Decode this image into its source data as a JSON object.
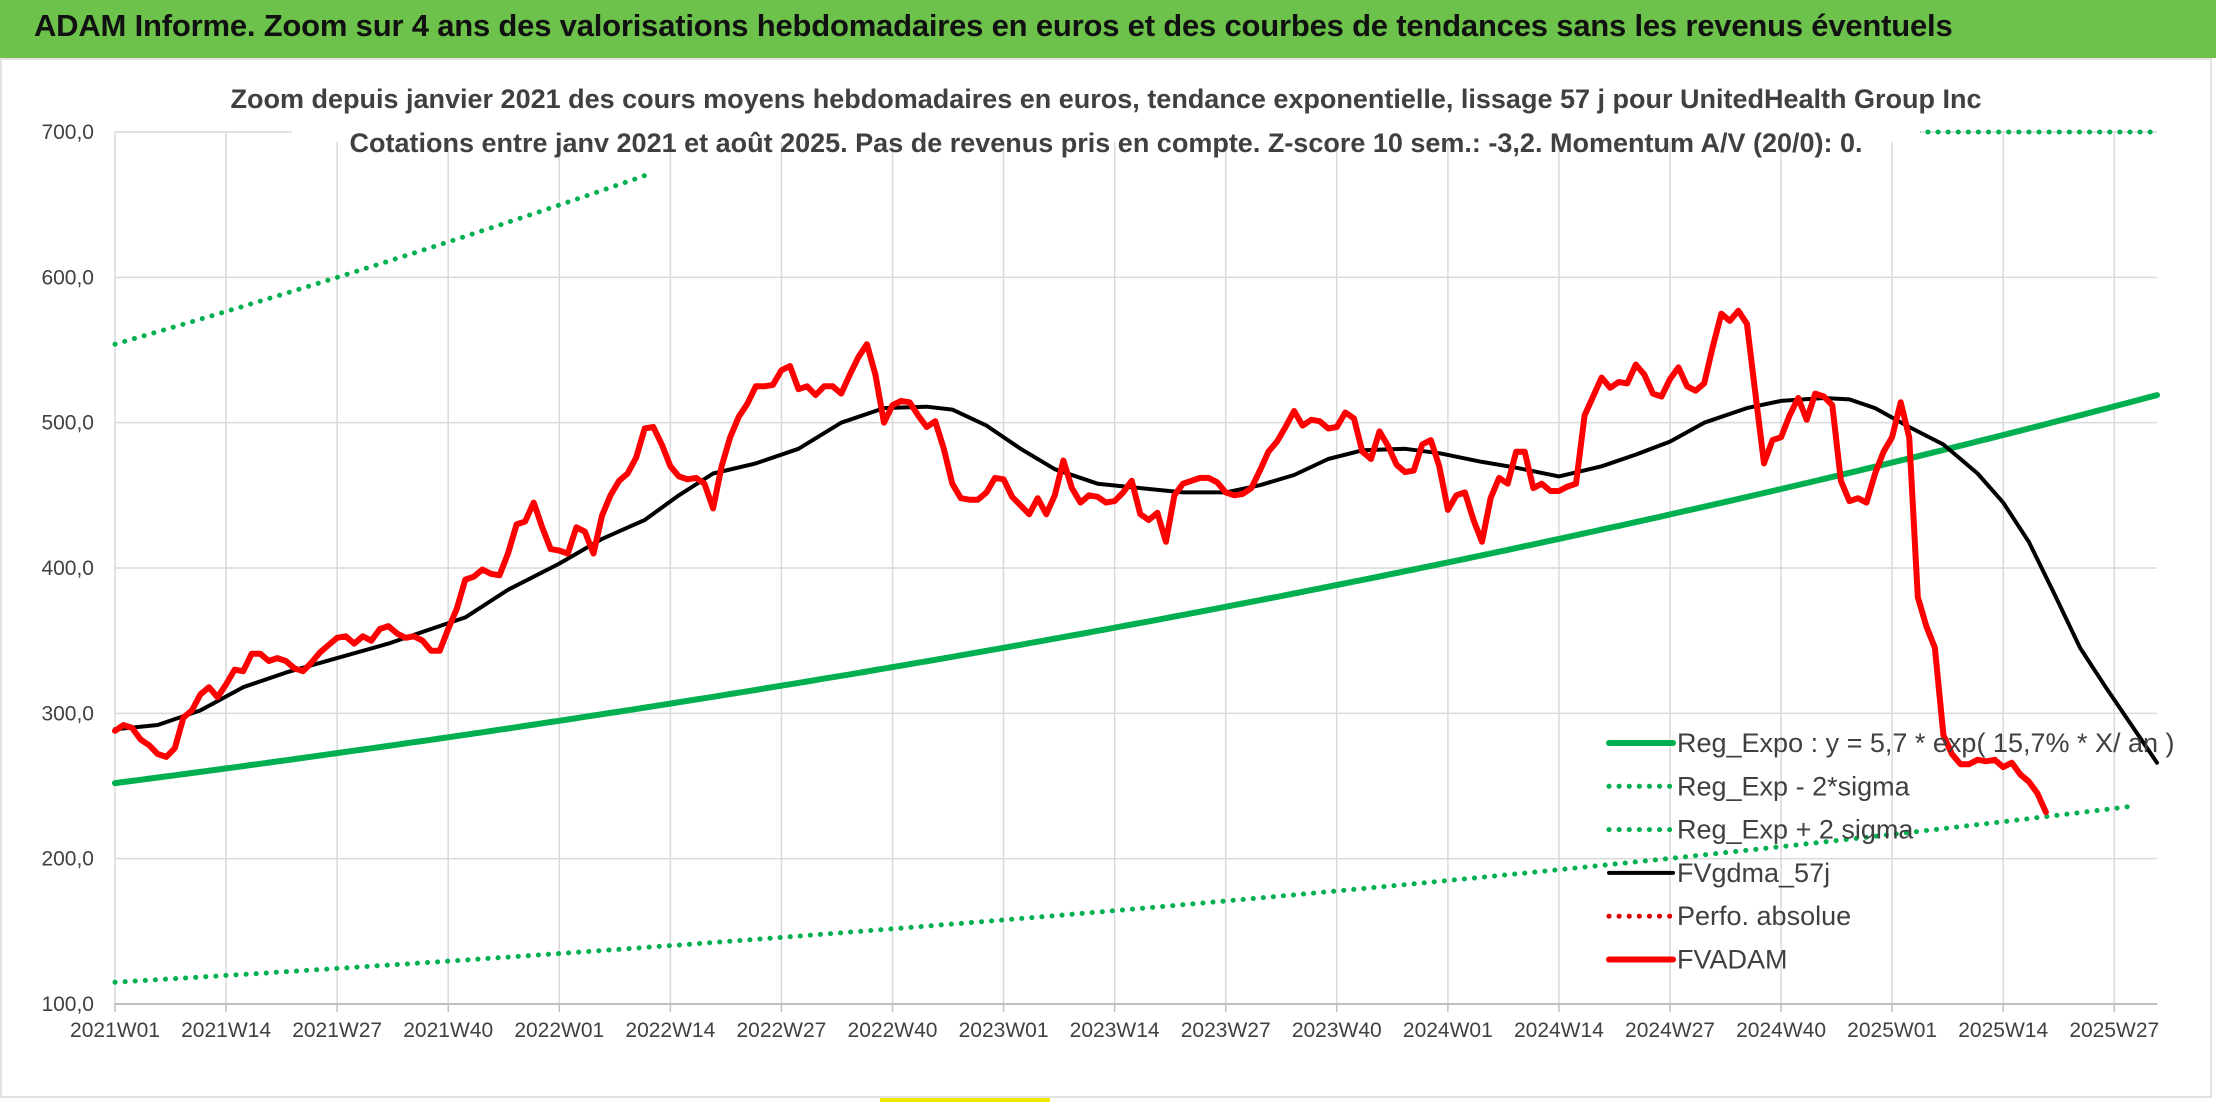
{
  "header": {
    "title": "ADAM Informe. Zoom sur 4 ans des valorisations hebdomadaires en euros et des courbes de tendances sans les revenus éventuels"
  },
  "colors": {
    "header_bg": "#6cc24a",
    "trend_green": "#00b050",
    "price_red": "#ff0000",
    "mma_black": "#000000",
    "perf_red": "#e00000",
    "grid": "#d9d9d9"
  },
  "chart_data": {
    "type": "line",
    "title": "Zoom depuis janvier 2021 des cours moyens hebdomadaires en euros, tendance exponentielle, lissage 57 j pour UnitedHealth Group Inc",
    "subtitle": "Cotations entre janv 2021 et août 2025. Pas de revenus pris en compte. Z-score 10 sem.: -3,2. Momentum A/V (20/0): 0.",
    "ylim": [
      100,
      700
    ],
    "y_ticks": [
      "700,0",
      "600,0",
      "500,0",
      "400,0",
      "300,0",
      "200,0",
      "100,0"
    ],
    "y_tick_values": [
      700,
      600,
      500,
      400,
      300,
      200,
      100
    ],
    "x_tick_labels": [
      "2021W01",
      "2021W14",
      "2021W27",
      "2021W40",
      "2022W01",
      "2022W14",
      "2022W27",
      "2022W40",
      "2023W01",
      "2023W14",
      "2023W27",
      "2023W40",
      "2024W01",
      "2024W14",
      "2024W27",
      "2024W40",
      "2025W01",
      "2025W14",
      "2025W27"
    ],
    "x_tick_weeks": [
      0,
      13,
      26,
      39,
      52,
      65,
      78,
      91,
      104,
      117,
      130,
      143,
      156,
      169,
      182,
      195,
      208,
      221,
      234
    ],
    "x_range_weeks": [
      0,
      239
    ],
    "grid": true,
    "legend_position": "bottom-right",
    "series": [
      {
        "name": "Reg_Expo : y = 5,7 * exp( 15,7% *  X/ an )",
        "style": "solid-thick",
        "color": "#00b050",
        "kind": "exponential",
        "points": [
          [
            0,
            252
          ],
          [
            239,
            519
          ]
        ]
      },
      {
        "name": "Reg_Exp - 2*sigma",
        "style": "dotted",
        "color": "#00b050",
        "kind": "exponential",
        "points": [
          [
            0,
            115
          ],
          [
            236,
            236
          ]
        ]
      },
      {
        "name": "Reg_Exp + 2 sigma",
        "style": "dotted",
        "color": "#00b050",
        "kind": "exponential",
        "points": [
          [
            0,
            554
          ],
          [
            62,
            670
          ]
        ],
        "flat_segment": [
          [
            211,
            700
          ],
          [
            239,
            700
          ]
        ]
      },
      {
        "name": "FVgdma_57j",
        "style": "solid",
        "color": "#000000",
        "points": [
          [
            0,
            289
          ],
          [
            5,
            292
          ],
          [
            10,
            302
          ],
          [
            15,
            318
          ],
          [
            20,
            328
          ],
          [
            26,
            338
          ],
          [
            32,
            348
          ],
          [
            37,
            358
          ],
          [
            41,
            366
          ],
          [
            46,
            385
          ],
          [
            52,
            403
          ],
          [
            57,
            420
          ],
          [
            62,
            433
          ],
          [
            66,
            450
          ],
          [
            70,
            465
          ],
          [
            75,
            472
          ],
          [
            80,
            482
          ],
          [
            85,
            500
          ],
          [
            90,
            510
          ],
          [
            95,
            511
          ],
          [
            98,
            509
          ],
          [
            102,
            498
          ],
          [
            106,
            482
          ],
          [
            110,
            468
          ],
          [
            115,
            458
          ],
          [
            120,
            455
          ],
          [
            125,
            452
          ],
          [
            130,
            452
          ],
          [
            134,
            457
          ],
          [
            138,
            464
          ],
          [
            142,
            475
          ],
          [
            146,
            481
          ],
          [
            151,
            482
          ],
          [
            155,
            479
          ],
          [
            160,
            473
          ],
          [
            164,
            469
          ],
          [
            169,
            463
          ],
          [
            174,
            470
          ],
          [
            178,
            478
          ],
          [
            182,
            487
          ],
          [
            186,
            500
          ],
          [
            191,
            510
          ],
          [
            195,
            515
          ],
          [
            200,
            517
          ],
          [
            203,
            516
          ],
          [
            206,
            510
          ],
          [
            210,
            497
          ],
          [
            214,
            485
          ],
          [
            218,
            465
          ],
          [
            221,
            445
          ],
          [
            224,
            418
          ],
          [
            227,
            382
          ],
          [
            230,
            345
          ],
          [
            233,
            318
          ],
          [
            236,
            292
          ],
          [
            239,
            266
          ]
        ]
      },
      {
        "name": "Perfo. absolue",
        "style": "dotted",
        "color": "#e00000",
        "points": []
      },
      {
        "name": "FVADAM",
        "style": "solid-thick",
        "color": "#ff0000",
        "points": [
          [
            0,
            288
          ],
          [
            1,
            292
          ],
          [
            2,
            290
          ],
          [
            3,
            282
          ],
          [
            4,
            278
          ],
          [
            5,
            272
          ],
          [
            6,
            270
          ],
          [
            7,
            276
          ],
          [
            8,
            297
          ],
          [
            9,
            302
          ],
          [
            10,
            313
          ],
          [
            11,
            318
          ],
          [
            12,
            311
          ],
          [
            13,
            320
          ],
          [
            14,
            330
          ],
          [
            15,
            329
          ],
          [
            16,
            341
          ],
          [
            17,
            341
          ],
          [
            18,
            336
          ],
          [
            19,
            338
          ],
          [
            20,
            336
          ],
          [
            21,
            331
          ],
          [
            22,
            329
          ],
          [
            23,
            335
          ],
          [
            24,
            342
          ],
          [
            25,
            347
          ],
          [
            26,
            352
          ],
          [
            27,
            353
          ],
          [
            28,
            348
          ],
          [
            29,
            353
          ],
          [
            30,
            350
          ],
          [
            31,
            358
          ],
          [
            32,
            360
          ],
          [
            33,
            355
          ],
          [
            34,
            352
          ],
          [
            35,
            353
          ],
          [
            36,
            350
          ],
          [
            37,
            343
          ],
          [
            38,
            343
          ],
          [
            39,
            358
          ],
          [
            40,
            372
          ],
          [
            41,
            392
          ],
          [
            42,
            394
          ],
          [
            43,
            399
          ],
          [
            44,
            396
          ],
          [
            45,
            395
          ],
          [
            46,
            410
          ],
          [
            47,
            430
          ],
          [
            48,
            432
          ],
          [
            49,
            445
          ],
          [
            50,
            428
          ],
          [
            51,
            413
          ],
          [
            52,
            412
          ],
          [
            53,
            410
          ],
          [
            54,
            428
          ],
          [
            55,
            425
          ],
          [
            56,
            410
          ],
          [
            57,
            436
          ],
          [
            58,
            450
          ],
          [
            59,
            460
          ],
          [
            60,
            465
          ],
          [
            61,
            476
          ],
          [
            62,
            496
          ],
          [
            63,
            497
          ],
          [
            64,
            485
          ],
          [
            65,
            470
          ],
          [
            66,
            463
          ],
          [
            67,
            461
          ],
          [
            68,
            462
          ],
          [
            69,
            458
          ],
          [
            70,
            441
          ],
          [
            71,
            470
          ],
          [
            72,
            490
          ],
          [
            73,
            504
          ],
          [
            74,
            513
          ],
          [
            75,
            525
          ],
          [
            76,
            525
          ],
          [
            77,
            526
          ],
          [
            78,
            536
          ],
          [
            79,
            539
          ],
          [
            80,
            523
          ],
          [
            81,
            525
          ],
          [
            82,
            519
          ],
          [
            83,
            525
          ],
          [
            84,
            525
          ],
          [
            85,
            520
          ],
          [
            86,
            533
          ],
          [
            87,
            545
          ],
          [
            88,
            554
          ],
          [
            89,
            533
          ],
          [
            90,
            500
          ],
          [
            91,
            512
          ],
          [
            92,
            515
          ],
          [
            93,
            514
          ],
          [
            94,
            505
          ],
          [
            95,
            497
          ],
          [
            96,
            501
          ],
          [
            97,
            482
          ],
          [
            98,
            458
          ],
          [
            99,
            448
          ],
          [
            100,
            447
          ],
          [
            101,
            447
          ],
          [
            102,
            452
          ],
          [
            103,
            462
          ],
          [
            104,
            461
          ],
          [
            105,
            449
          ],
          [
            106,
            443
          ],
          [
            107,
            437
          ],
          [
            108,
            448
          ],
          [
            109,
            437
          ],
          [
            110,
            450
          ],
          [
            111,
            474
          ],
          [
            112,
            455
          ],
          [
            113,
            445
          ],
          [
            114,
            450
          ],
          [
            115,
            449
          ],
          [
            116,
            445
          ],
          [
            117,
            446
          ],
          [
            118,
            452
          ],
          [
            119,
            460
          ],
          [
            120,
            437
          ],
          [
            121,
            433
          ],
          [
            122,
            438
          ],
          [
            123,
            418
          ],
          [
            124,
            450
          ],
          [
            125,
            458
          ],
          [
            126,
            460
          ],
          [
            127,
            462
          ],
          [
            128,
            462
          ],
          [
            129,
            459
          ],
          [
            130,
            452
          ],
          [
            131,
            450
          ],
          [
            132,
            451
          ],
          [
            133,
            455
          ],
          [
            134,
            467
          ],
          [
            135,
            480
          ],
          [
            136,
            487
          ],
          [
            137,
            497
          ],
          [
            138,
            508
          ],
          [
            139,
            498
          ],
          [
            140,
            502
          ],
          [
            141,
            501
          ],
          [
            142,
            496
          ],
          [
            143,
            497
          ],
          [
            144,
            507
          ],
          [
            145,
            503
          ],
          [
            146,
            480
          ],
          [
            147,
            475
          ],
          [
            148,
            494
          ],
          [
            149,
            484
          ],
          [
            150,
            471
          ],
          [
            151,
            466
          ],
          [
            152,
            467
          ],
          [
            153,
            485
          ],
          [
            154,
            488
          ],
          [
            155,
            470
          ],
          [
            156,
            440
          ],
          [
            157,
            450
          ],
          [
            158,
            452
          ],
          [
            159,
            433
          ],
          [
            160,
            418
          ],
          [
            161,
            448
          ],
          [
            162,
            462
          ],
          [
            163,
            458
          ],
          [
            164,
            480
          ],
          [
            165,
            480
          ],
          [
            166,
            455
          ],
          [
            167,
            458
          ],
          [
            168,
            453
          ],
          [
            169,
            453
          ],
          [
            170,
            456
          ],
          [
            171,
            458
          ],
          [
            172,
            505
          ],
          [
            173,
            518
          ],
          [
            174,
            531
          ],
          [
            175,
            524
          ],
          [
            176,
            528
          ],
          [
            177,
            527
          ],
          [
            178,
            540
          ],
          [
            179,
            533
          ],
          [
            180,
            520
          ],
          [
            181,
            518
          ],
          [
            182,
            530
          ],
          [
            183,
            538
          ],
          [
            184,
            525
          ],
          [
            185,
            522
          ],
          [
            186,
            527
          ],
          [
            187,
            552
          ],
          [
            188,
            575
          ],
          [
            189,
            570
          ],
          [
            190,
            577
          ],
          [
            191,
            568
          ],
          [
            192,
            520
          ],
          [
            193,
            472
          ],
          [
            194,
            488
          ],
          [
            195,
            490
          ],
          [
            196,
            505
          ],
          [
            197,
            517
          ],
          [
            198,
            502
          ],
          [
            199,
            520
          ],
          [
            200,
            518
          ],
          [
            201,
            512
          ],
          [
            202,
            460
          ],
          [
            203,
            446
          ],
          [
            204,
            448
          ],
          [
            205,
            445
          ],
          [
            206,
            465
          ],
          [
            207,
            480
          ],
          [
            208,
            490
          ],
          [
            209,
            514
          ],
          [
            210,
            490
          ],
          [
            211,
            380
          ],
          [
            212,
            360
          ],
          [
            213,
            345
          ],
          [
            214,
            285
          ],
          [
            215,
            272
          ],
          [
            216,
            265
          ],
          [
            217,
            265
          ],
          [
            218,
            268
          ],
          [
            219,
            267
          ],
          [
            220,
            268
          ],
          [
            221,
            263
          ],
          [
            222,
            266
          ],
          [
            223,
            258
          ],
          [
            224,
            253
          ],
          [
            225,
            245
          ],
          [
            226,
            232
          ]
        ]
      }
    ]
  }
}
